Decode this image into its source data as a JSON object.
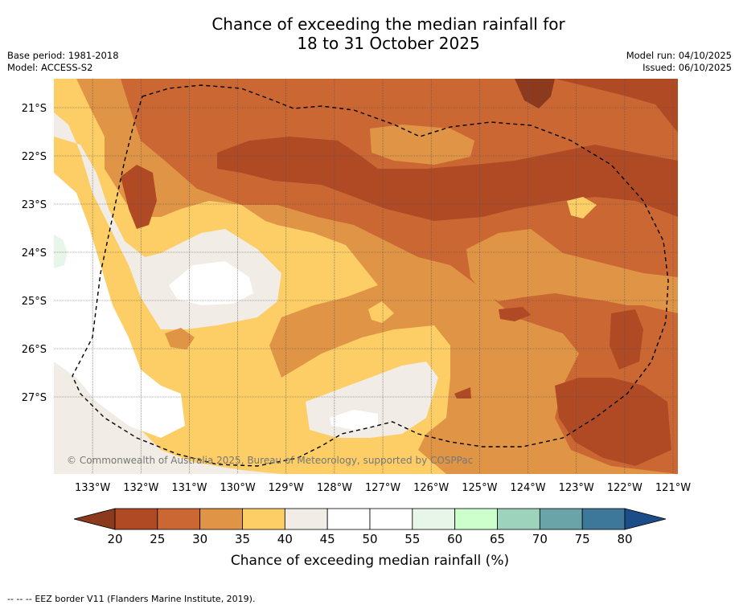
{
  "header": {
    "title_line1": "Chance of exceeding the median rainfall for",
    "title_line2": "18 to 31 October 2025",
    "base_period": "Base period: 1981-2018",
    "model": "Model: ACCESS-S2",
    "model_run": "Model run: 04/10/2025",
    "issued": "Issued: 06/10/2025"
  },
  "map": {
    "copyright": "© Commonwealth of Australia 2025, Bureau of Meteorology, supported by COSPPac",
    "lat_labels": [
      "21°S",
      "22°S",
      "23°S",
      "24°S",
      "25°S",
      "26°S",
      "27°S"
    ],
    "lon_labels": [
      "133°W",
      "132°W",
      "131°W",
      "130°W",
      "129°W",
      "128°W",
      "127°W",
      "126°W",
      "125°W",
      "124°W",
      "123°W",
      "122°W",
      "121°W"
    ]
  },
  "chart_data": {
    "type": "heatmap",
    "title": "Chance of exceeding the median rainfall for 18 to 31 October 2025",
    "variable": "Chance of exceeding median rainfall (%)",
    "x_range_lon": [
      133.8,
      120.9
    ],
    "y_range_lat": [
      20.4,
      28.6
    ],
    "colorbar": {
      "label": "Chance of exceeding median rainfall (%)",
      "ticks": [
        20,
        25,
        30,
        35,
        40,
        45,
        50,
        55,
        60,
        65,
        70,
        75,
        80
      ],
      "bins": [
        {
          "range": "<20",
          "color": "#8b3a1e"
        },
        {
          "range": "20-25",
          "color": "#b04a25"
        },
        {
          "range": "25-30",
          "color": "#cb6733"
        },
        {
          "range": "30-35",
          "color": "#e09445"
        },
        {
          "range": "35-40",
          "color": "#fdcd66"
        },
        {
          "range": "40-45",
          "color": "#f1ede6"
        },
        {
          "range": "45-50",
          "color": "#ffffff"
        },
        {
          "range": "50-55",
          "color": "#ffffff"
        },
        {
          "range": "55-60",
          "color": "#e8f5e9"
        },
        {
          "range": "60-65",
          "color": "#ccffcc"
        },
        {
          "range": "65-70",
          "color": "#9dd3bd"
        },
        {
          "range": "70-75",
          "color": "#6aa3a8"
        },
        {
          "range": "75-80",
          "color": "#3d7799"
        },
        {
          "range": ">80",
          "color": "#1c4d89"
        }
      ]
    },
    "legend_note": "EEZ border V11 (Flanders Marine Institute, 2019)."
  },
  "footnote": {
    "dashes": "--  --  --",
    "text": "EEZ border V11 (Flanders Marine Institute, 2019)."
  }
}
